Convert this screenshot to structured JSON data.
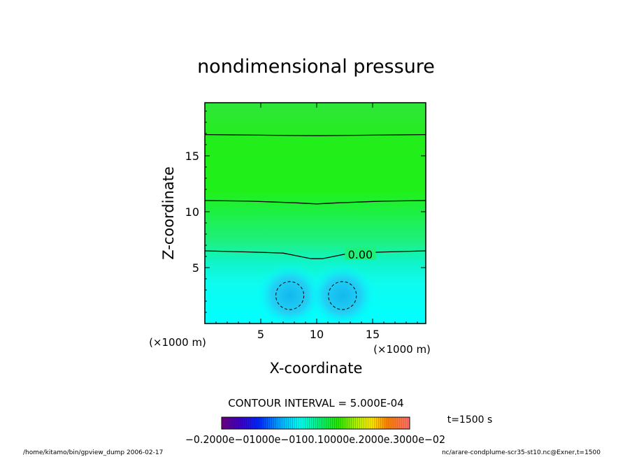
{
  "chart_data": {
    "type": "heatmap",
    "title": "nondimensional pressure",
    "xlabel": "X-coordinate",
    "ylabel": "Z-coordinate",
    "x_unit": "(×1000 m)",
    "y_unit": "(×1000 m)",
    "xlim": [
      0,
      19.75
    ],
    "ylim": [
      0,
      19.75
    ],
    "x_ticks": [
      5,
      10,
      15
    ],
    "y_ticks": [
      5,
      10,
      15
    ],
    "contour_interval_text": "CONTOUR INTERVAL = 5.000E-04",
    "contour_labels": [
      {
        "text": "0.00",
        "x": 13.9,
        "z": 6.2
      }
    ],
    "contours": [
      {
        "level": 0.001,
        "dashed": false,
        "points": [
          [
            0,
            16.9
          ],
          [
            5,
            16.85
          ],
          [
            10,
            16.8
          ],
          [
            15,
            16.85
          ],
          [
            19.75,
            16.9
          ]
        ]
      },
      {
        "level": 0.0005,
        "dashed": false,
        "points": [
          [
            0,
            11.0
          ],
          [
            4,
            10.95
          ],
          [
            8,
            10.8
          ],
          [
            10,
            10.7
          ],
          [
            12,
            10.8
          ],
          [
            16,
            10.95
          ],
          [
            19.75,
            11.0
          ]
        ]
      },
      {
        "level": 0.0,
        "dashed": false,
        "points": [
          [
            0,
            6.5
          ],
          [
            4,
            6.4
          ],
          [
            7,
            6.3
          ],
          [
            8.5,
            6.0
          ],
          [
            9.5,
            5.8
          ],
          [
            10.5,
            5.8
          ],
          [
            11.5,
            6.0
          ],
          [
            13,
            6.3
          ],
          [
            16,
            6.4
          ],
          [
            19.75,
            6.5
          ]
        ]
      },
      {
        "level": -0.0005,
        "dashed": true,
        "ellipse": [
          7.6,
          2.5,
          1.25,
          1.25
        ]
      },
      {
        "level": -0.0005,
        "dashed": true,
        "ellipse": [
          12.3,
          2.5,
          1.25,
          1.25
        ]
      }
    ],
    "colorbar": {
      "range": [
        -0.002,
        0.003
      ],
      "tick_labels_text": "−0.2000e−01000e−0100.10000e.2000e.3000e−02"
    },
    "time_label": "t=1500 s"
  },
  "footer": {
    "left": "/home/kitamo/bin/gpview_dump   2006-02-17",
    "right": "nc/arare-condplume-scr35-st10.nc@Exner,t=1500"
  }
}
